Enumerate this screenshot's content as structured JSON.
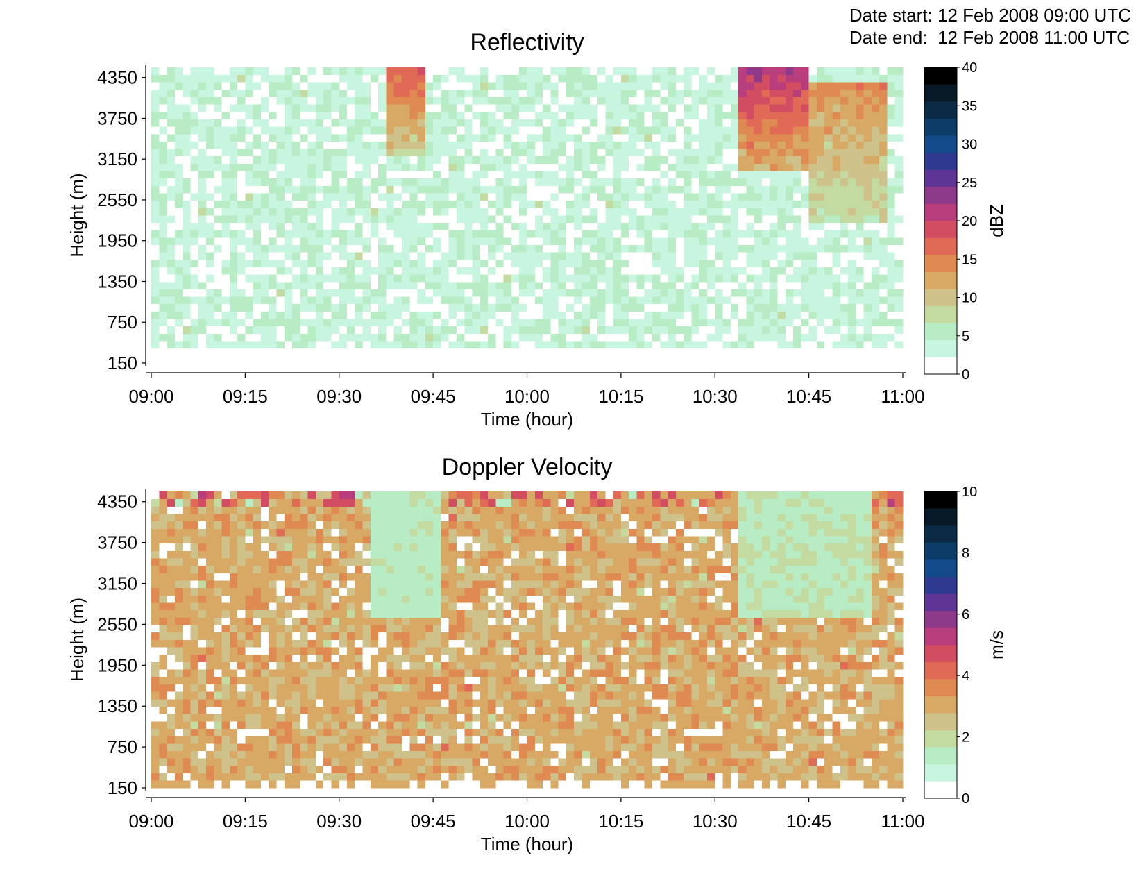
{
  "header": {
    "date_start_label": "Date start:",
    "date_start_value": "12 Feb 2008 09:00 UTC",
    "date_end_label": "Date end:",
    "date_end_value": "12 Feb 2008 11:00 UTC"
  },
  "chart_data": [
    {
      "type": "heatmap",
      "title": "Reflectivity",
      "xlabel": "Time (hour)",
      "ylabel": "Height (m)",
      "colorbar_label": "dBZ",
      "x_ticks": [
        "09:00",
        "09:15",
        "09:30",
        "09:45",
        "10:00",
        "10:15",
        "10:30",
        "10:45",
        "11:00"
      ],
      "y_ticks": [
        150,
        750,
        1350,
        1950,
        2550,
        3150,
        3750,
        4350
      ],
      "ylim": [
        150,
        4500
      ],
      "color_range": [
        0,
        40
      ],
      "colorbar_ticks": [
        0,
        5,
        10,
        15,
        20,
        25,
        30,
        35,
        40
      ],
      "colormap": [
        "#ffffff",
        "#c8f5e0",
        "#b8ecc4",
        "#c3dba0",
        "#cec28a",
        "#d8a865",
        "#df8a50",
        "#e06a55",
        "#d24d62",
        "#b73d7d",
        "#8e3a8a",
        "#5e3494",
        "#2d3a8f",
        "#134a8a",
        "#0b3d68",
        "#0b2a45",
        "#081a28",
        "#000000"
      ],
      "features": [
        {
          "x_range": [
            "09:37",
            "09:44"
          ],
          "y_range": [
            3200,
            4500
          ],
          "value": 16
        },
        {
          "x_range": [
            "10:34",
            "10:45"
          ],
          "y_range": [
            3000,
            4500
          ],
          "value": 20
        },
        {
          "x_range": [
            "10:45",
            "10:58"
          ],
          "y_range": [
            2200,
            4300
          ],
          "value": 13
        }
      ]
    },
    {
      "type": "heatmap",
      "title": "Doppler Velocity",
      "xlabel": "Time (hour)",
      "ylabel": "Height (m)",
      "colorbar_label": "m/s",
      "x_ticks": [
        "09:00",
        "09:15",
        "09:30",
        "09:45",
        "10:00",
        "10:15",
        "10:30",
        "10:45",
        "11:00"
      ],
      "y_ticks": [
        150,
        750,
        1350,
        1950,
        2550,
        3150,
        3750,
        4350
      ],
      "ylim": [
        150,
        4500
      ],
      "color_range": [
        0,
        10
      ],
      "colorbar_ticks": [
        0,
        2,
        4,
        6,
        8,
        10
      ],
      "colormap": [
        "#ffffff",
        "#c8f5e0",
        "#b8ecc4",
        "#c3dba0",
        "#cec28a",
        "#d8a865",
        "#df8a50",
        "#e06a55",
        "#d24d62",
        "#b73d7d",
        "#8e3a8a",
        "#5e3494",
        "#2d3a8f",
        "#134a8a",
        "#0b3d68",
        "#0b2a45",
        "#081a28",
        "#000000"
      ],
      "features": [
        {
          "x_range": [
            "09:35",
            "09:46"
          ],
          "y_range": [
            2600,
            4500
          ],
          "value": 1.5
        },
        {
          "x_range": [
            "10:34",
            "10:55"
          ],
          "y_range": [
            2700,
            4500
          ],
          "value": 1.6
        }
      ]
    }
  ]
}
